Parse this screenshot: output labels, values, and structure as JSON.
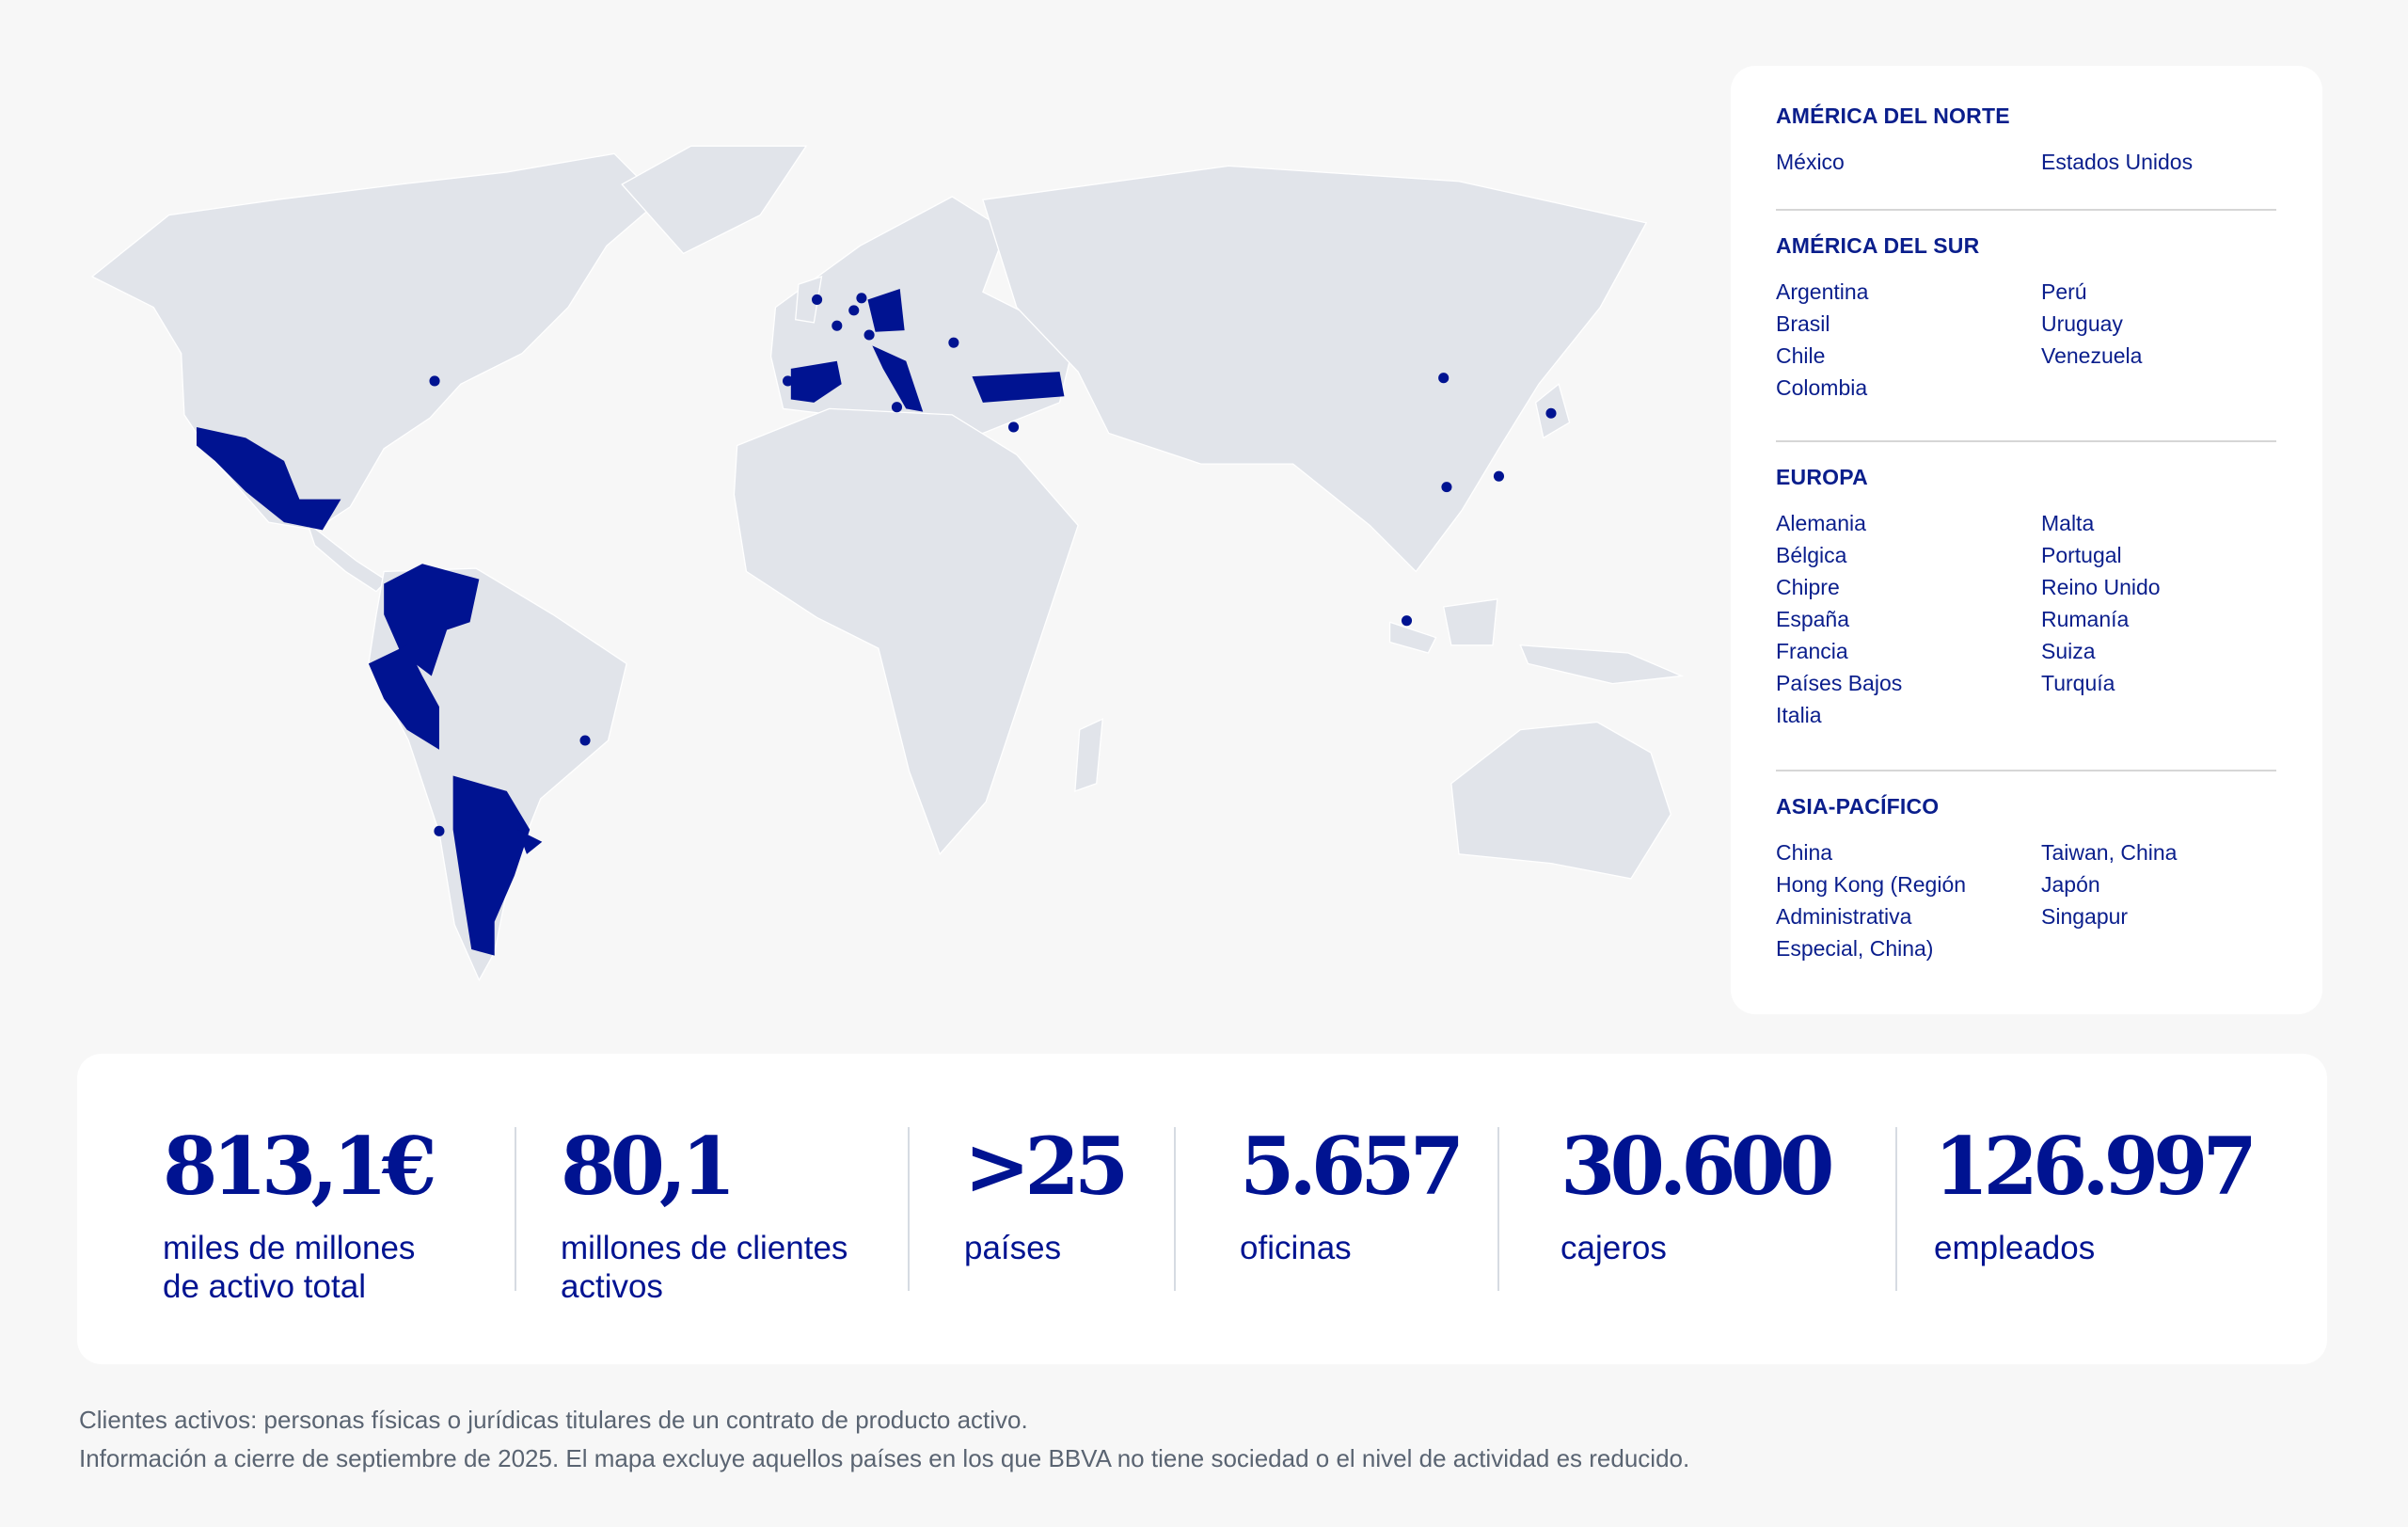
{
  "colors": {
    "accent": "#001391",
    "land": "#e1e4ea",
    "background": "#f7f7f7"
  },
  "legend": {
    "regions": [
      {
        "title": "AMÉRICA DEL NORTE",
        "col1": [
          "México"
        ],
        "col2": [
          "Estados Unidos"
        ]
      },
      {
        "title": "AMÉRICA DEL SUR",
        "col1": [
          "Argentina",
          "Brasil",
          "Chile",
          "Colombia"
        ],
        "col2": [
          "Perú",
          "Uruguay",
          "Venezuela"
        ]
      },
      {
        "title": "EUROPA",
        "col1": [
          "Alemania",
          "Bélgica",
          "Chipre",
          "España",
          "Francia",
          "Países Bajos",
          "Italia"
        ],
        "col2": [
          "Malta",
          "Portugal",
          "Reino Unido",
          "Rumanía",
          "Suiza",
          "Turquía"
        ]
      },
      {
        "title": "ASIA-PACÍFICO",
        "col1": [
          "China",
          "Hong Kong (Región",
          "Administrativa",
          "Especial, China)"
        ],
        "col2": [
          "Taiwan, China",
          "Japón",
          "Singapur"
        ]
      }
    ]
  },
  "stats": [
    {
      "value": "813,1€",
      "label1": "miles de millones",
      "label2": "de activo total"
    },
    {
      "value": "80,1",
      "label1": "millones de clientes",
      "label2": "activos"
    },
    {
      "value": ">25",
      "label1": "países",
      "label2": ""
    },
    {
      "value": "5.657",
      "label1": "oficinas",
      "label2": ""
    },
    {
      "value": "30.600",
      "label1": "cajeros",
      "label2": ""
    },
    {
      "value": "126.997",
      "label1": "empleados",
      "label2": ""
    }
  ],
  "footnotes": [
    "Clientes activos: personas físicas o jurídicas titulares de un contrato de producto activo.",
    "Información a cierre de septiembre de 2025. El mapa excluye aquellos países en los que BBVA no tiene sociedad o el nivel de actividad es reducido."
  ]
}
